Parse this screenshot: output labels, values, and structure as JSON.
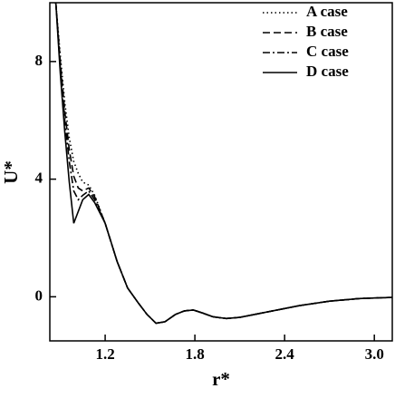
{
  "chart_data": {
    "type": "line",
    "x_label": "r*",
    "y_label": "U*",
    "x": [
      0.87,
      0.9,
      0.93,
      0.96,
      0.99,
      1.02,
      1.05,
      1.09,
      1.13,
      1.2,
      1.28,
      1.35,
      1.42,
      1.48,
      1.54,
      1.6,
      1.67,
      1.73,
      1.79,
      1.85,
      1.92,
      2.01,
      2.1,
      2.2,
      2.35,
      2.5,
      2.7,
      2.9,
      3.12
    ],
    "series": [
      {
        "name": "A case",
        "color": "#000000",
        "dash": "dotted",
        "values": [
          10,
          8.2,
          6.6,
          5.4,
          4.6,
          4.2,
          3.9,
          3.8,
          3.45,
          2.5,
          1.2,
          0.3,
          -0.2,
          -0.6,
          -0.9,
          -0.85,
          -0.6,
          -0.48,
          -0.45,
          -0.55,
          -0.68,
          -0.74,
          -0.7,
          -0.6,
          -0.45,
          -0.3,
          -0.15,
          -0.06,
          -0.02
        ]
      },
      {
        "name": "B case",
        "color": "#000000",
        "dash": "dashed",
        "values": [
          10,
          8,
          6.3,
          5,
          4.1,
          3.7,
          3.6,
          3.7,
          3.4,
          2.5,
          1.2,
          0.3,
          -0.2,
          -0.6,
          -0.9,
          -0.85,
          -0.6,
          -0.48,
          -0.45,
          -0.55,
          -0.68,
          -0.74,
          -0.7,
          -0.6,
          -0.45,
          -0.3,
          -0.15,
          -0.06,
          -0.02
        ]
      },
      {
        "name": "C case",
        "color": "#000000",
        "dash": "dashdot",
        "values": [
          10,
          7.8,
          6,
          4.6,
          3.6,
          3.3,
          3.45,
          3.6,
          3.3,
          2.5,
          1.2,
          0.3,
          -0.2,
          -0.6,
          -0.9,
          -0.85,
          -0.6,
          -0.48,
          -0.45,
          -0.55,
          -0.68,
          -0.74,
          -0.7,
          -0.6,
          -0.45,
          -0.3,
          -0.15,
          -0.06,
          -0.02
        ]
      },
      {
        "name": "D case",
        "color": "#000000",
        "dash": "solid",
        "values": [
          10,
          7.6,
          5.6,
          3.9,
          2.5,
          2.9,
          3.3,
          3.48,
          3.2,
          2.5,
          1.2,
          0.3,
          -0.2,
          -0.6,
          -0.9,
          -0.85,
          -0.6,
          -0.48,
          -0.45,
          -0.55,
          -0.68,
          -0.74,
          -0.7,
          -0.6,
          -0.45,
          -0.3,
          -0.15,
          -0.06,
          -0.02
        ]
      }
    ],
    "xlim": [
      0.83,
      3.12
    ],
    "ylim": [
      -1.5,
      10
    ],
    "xticks": [
      1.2,
      1.8,
      2.4,
      {
        "value": 3,
        "label": "3.0"
      }
    ],
    "yticks": [
      0,
      4,
      8
    ],
    "legend": "upper right"
  }
}
